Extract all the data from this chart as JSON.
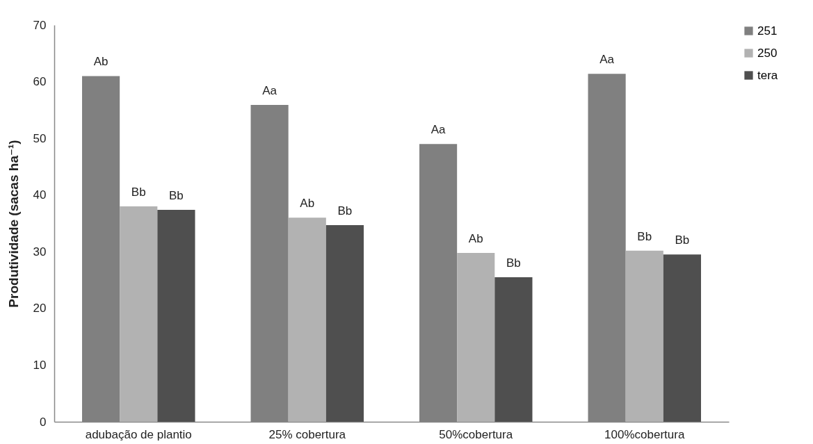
{
  "chart_data": {
    "type": "bar",
    "ylabel": "Produtividade (sacas ha⁻¹)",
    "categories": [
      "adubação de plantio",
      "25% cobertura",
      "50%cobertura",
      "100%cobertura"
    ],
    "series": [
      {
        "name": "251",
        "color": "#808080",
        "values": [
          61.0,
          55.9,
          49.0,
          61.4
        ],
        "value_labels": [
          "Ab",
          "Aa",
          "Aa",
          "Aa"
        ]
      },
      {
        "name": "250",
        "color": "#b2b2b2",
        "values": [
          38.0,
          36.0,
          29.8,
          30.2
        ],
        "value_labels": [
          "Bb",
          "Ab",
          "Ab",
          "Bb"
        ]
      },
      {
        "name": "tera",
        "color": "#4f4f4f",
        "values": [
          37.4,
          34.7,
          25.5,
          29.5
        ],
        "value_labels": [
          "Bb",
          "Bb",
          "Bb",
          "Bb"
        ]
      }
    ],
    "ylim": [
      0,
      70
    ],
    "yticks": [
      0,
      10,
      20,
      30,
      40,
      50,
      60,
      70
    ],
    "grid": false,
    "legend": "right"
  }
}
